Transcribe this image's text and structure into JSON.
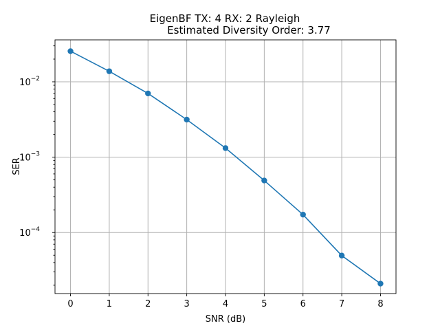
{
  "chart_data": {
    "type": "line",
    "title_lines": [
      "EigenBF TX: 4 RX: 2 Rayleigh",
      "Estimated Diversity Order: 3.77"
    ],
    "xlabel": "SNR (dB)",
    "ylabel": "SER",
    "x_scale": "linear",
    "y_scale": "log",
    "xlim": [
      -0.4,
      8.4
    ],
    "ylim": [
      1.55e-05,
      0.036
    ],
    "grid": true,
    "x_ticks": [
      0,
      1,
      2,
      3,
      4,
      5,
      6,
      7,
      8
    ],
    "x_tick_labels": [
      "0",
      "1",
      "2",
      "3",
      "4",
      "5",
      "6",
      "7",
      "8"
    ],
    "y_ticks": [
      {
        "value": 0.01,
        "base": "10",
        "exponent": "−2"
      },
      {
        "value": 0.001,
        "base": "10",
        "exponent": "−3"
      },
      {
        "value": 0.0001,
        "base": "10",
        "exponent": "−4"
      }
    ],
    "color": "#1f77b4",
    "marker": "circle",
    "series": [
      {
        "x": [
          0,
          1,
          2,
          3,
          4,
          5,
          6,
          7,
          8
        ],
        "y": [
          0.0255,
          0.0138,
          0.007,
          0.00315,
          0.00132,
          0.00049,
          0.000173,
          4.95e-05,
          2.1e-05
        ]
      }
    ]
  }
}
